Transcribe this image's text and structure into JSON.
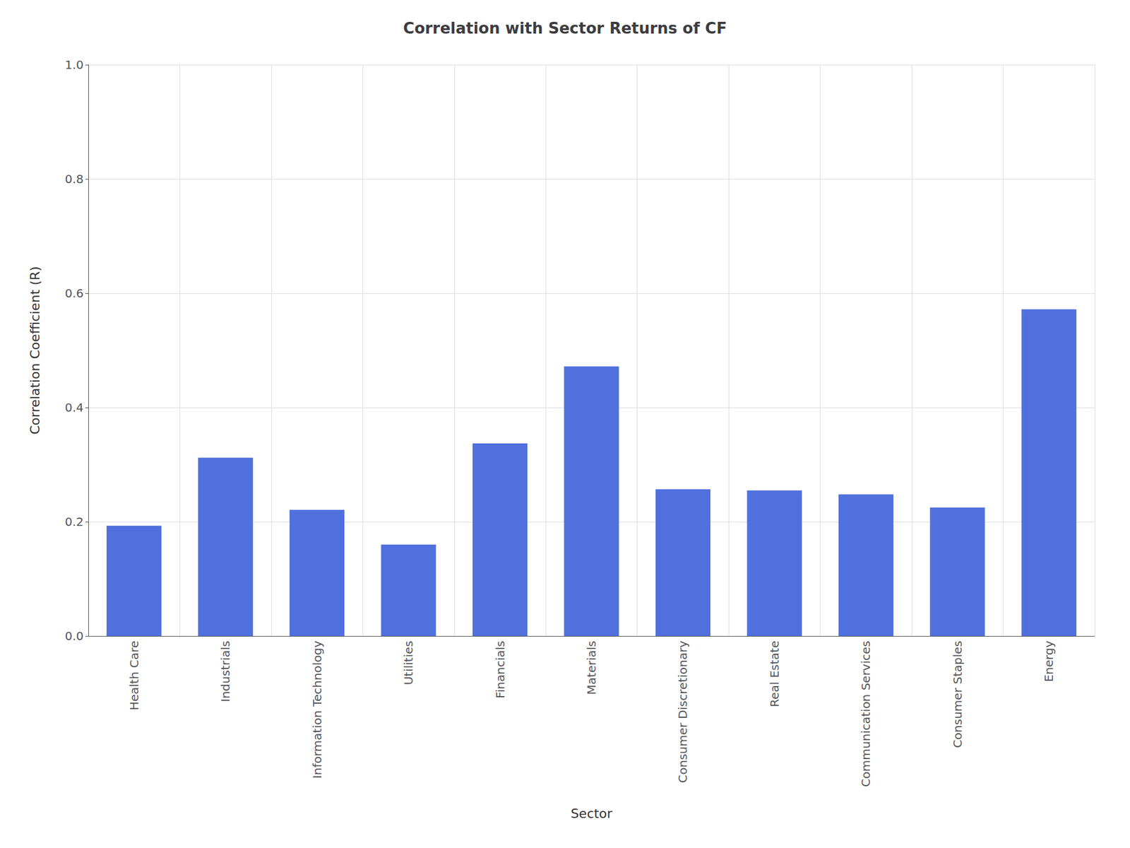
{
  "chart_data": {
    "type": "bar",
    "title": "Correlation with Sector Returns of CF",
    "xlabel": "Sector",
    "ylabel": "Correlation Coefficient (R)",
    "categories": [
      "Health Care",
      "Industrials",
      "Information Technology",
      "Utilities",
      "Financials",
      "Materials",
      "Consumer Discretionary",
      "Real Estate",
      "Communication Services",
      "Consumer Staples",
      "Energy"
    ],
    "values": [
      0.193,
      0.312,
      0.221,
      0.16,
      0.337,
      0.472,
      0.257,
      0.255,
      0.248,
      0.225,
      0.572
    ],
    "ylim": [
      0.0,
      1.0
    ],
    "yticks": [
      {
        "value": 0,
        "label": "0.0"
      },
      0.2,
      0.4,
      0.6,
      0.8,
      {
        "value": 1,
        "label": "1.0"
      }
    ],
    "grid": true
  }
}
